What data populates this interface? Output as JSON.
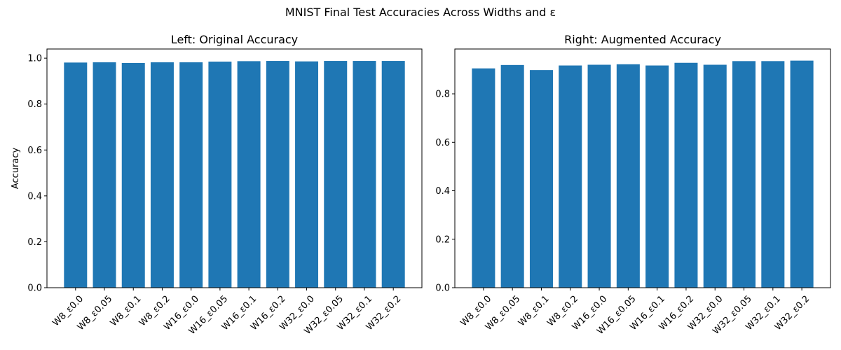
{
  "figure": {
    "suptitle": "MNIST Final Test Accuracies Across Widths and ε"
  },
  "chart_data": [
    {
      "type": "bar",
      "title": "Left: Original Accuracy",
      "xlabel": "",
      "ylabel": "Accuracy",
      "ylim": [
        0,
        1.04
      ],
      "yticks": [
        0.0,
        0.2,
        0.4,
        0.6,
        0.8,
        1.0
      ],
      "ytick_labels": [
        "0.0",
        "0.2",
        "0.4",
        "0.6",
        "0.8",
        "1.0"
      ],
      "grid": false,
      "color": "#1f77b4",
      "categories": [
        "W8_ε0.0",
        "W8_ε0.05",
        "W8_ε0.1",
        "W8_ε0.2",
        "W16_ε0.0",
        "W16_ε0.05",
        "W16_ε0.1",
        "W16_ε0.2",
        "W32_ε0.0",
        "W32_ε0.05",
        "W32_ε0.1",
        "W32_ε0.2"
      ],
      "values": [
        0.981,
        0.982,
        0.979,
        0.982,
        0.982,
        0.985,
        0.987,
        0.988,
        0.986,
        0.988,
        0.988,
        0.988
      ]
    },
    {
      "type": "bar",
      "title": "Right: Augmented Accuracy",
      "xlabel": "",
      "ylabel": "",
      "ylim": [
        0,
        0.985
      ],
      "yticks": [
        0.0,
        0.2,
        0.4,
        0.6,
        0.8
      ],
      "ytick_labels": [
        "0.0",
        "0.2",
        "0.4",
        "0.6",
        "0.8"
      ],
      "grid": false,
      "color": "#1f77b4",
      "categories": [
        "W8_ε0.0",
        "W8_ε0.05",
        "W8_ε0.1",
        "W8_ε0.2",
        "W16_ε0.0",
        "W16_ε0.05",
        "W16_ε0.1",
        "W16_ε0.2",
        "W32_ε0.0",
        "W32_ε0.05",
        "W32_ε0.1",
        "W32_ε0.2"
      ],
      "values": [
        0.905,
        0.919,
        0.898,
        0.917,
        0.92,
        0.922,
        0.917,
        0.928,
        0.92,
        0.935,
        0.935,
        0.937
      ]
    }
  ]
}
